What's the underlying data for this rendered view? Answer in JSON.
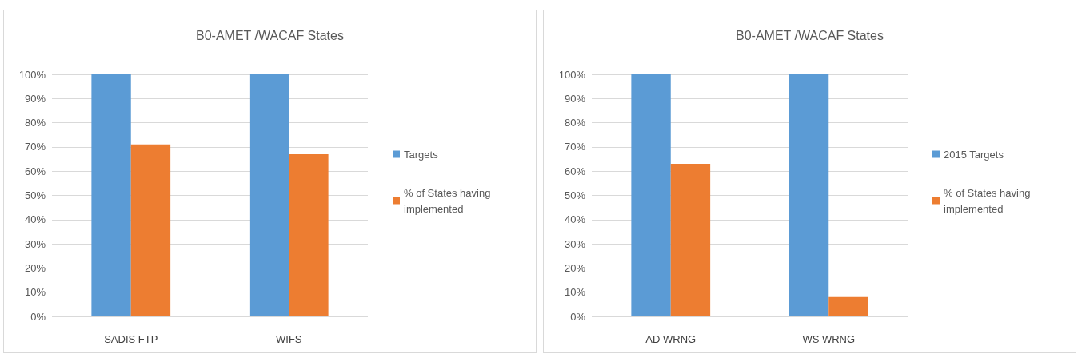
{
  "chart_data": [
    {
      "type": "bar",
      "title": "B0-AMET /WACAF States",
      "categories": [
        "SADIS FTP",
        "WIFS"
      ],
      "series": [
        {
          "name": "Targets",
          "color": "#5b9bd5",
          "values": [
            100,
            100
          ]
        },
        {
          "name": "% of States having implemented",
          "color": "#ed7d31",
          "values": [
            71,
            67
          ]
        }
      ],
      "ylim": [
        0,
        100
      ],
      "yticks": [
        {
          "value": 0,
          "label": "0%"
        },
        {
          "value": 10,
          "label": "10%"
        },
        {
          "value": 20,
          "label": "20%"
        },
        {
          "value": 30,
          "label": "30%"
        },
        {
          "value": 40,
          "label": "40%"
        },
        {
          "value": 50,
          "label": "50%"
        },
        {
          "value": 60,
          "label": "60%"
        },
        {
          "value": 70,
          "label": "70%"
        },
        {
          "value": 80,
          "label": "80%"
        },
        {
          "value": 90,
          "label": "90%"
        },
        {
          "value": 100,
          "label": "100%"
        }
      ],
      "grid": "y",
      "legend": "right"
    },
    {
      "type": "bar",
      "title": "B0-AMET /WACAF States",
      "categories": [
        "AD WRNG",
        "WS WRNG"
      ],
      "series": [
        {
          "name": "2015 Targets",
          "color": "#5b9bd5",
          "values": [
            100,
            100
          ]
        },
        {
          "name": "% of States having implemented",
          "color": "#ed7d31",
          "values": [
            63,
            8
          ]
        }
      ],
      "ylim": [
        0,
        100
      ],
      "yticks": [
        {
          "value": 0,
          "label": "0%"
        },
        {
          "value": 10,
          "label": "10%"
        },
        {
          "value": 20,
          "label": "20%"
        },
        {
          "value": 30,
          "label": "30%"
        },
        {
          "value": 40,
          "label": "40%"
        },
        {
          "value": 50,
          "label": "50%"
        },
        {
          "value": 60,
          "label": "60%"
        },
        {
          "value": 70,
          "label": "70%"
        },
        {
          "value": 80,
          "label": "80%"
        },
        {
          "value": 90,
          "label": "90%"
        },
        {
          "value": 100,
          "label": "100%"
        }
      ],
      "grid": "y",
      "legend": "right"
    }
  ]
}
